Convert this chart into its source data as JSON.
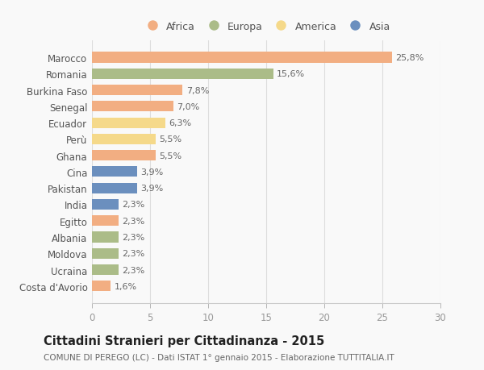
{
  "categories": [
    "Marocco",
    "Romania",
    "Burkina Faso",
    "Senegal",
    "Ecuador",
    "Perù",
    "Ghana",
    "Cina",
    "Pakistan",
    "India",
    "Egitto",
    "Albania",
    "Moldova",
    "Ucraina",
    "Costa d'Avorio"
  ],
  "values": [
    25.8,
    15.6,
    7.8,
    7.0,
    6.3,
    5.5,
    5.5,
    3.9,
    3.9,
    2.3,
    2.3,
    2.3,
    2.3,
    2.3,
    1.6
  ],
  "labels": [
    "25,8%",
    "15,6%",
    "7,8%",
    "7,0%",
    "6,3%",
    "5,5%",
    "5,5%",
    "3,9%",
    "3,9%",
    "2,3%",
    "2,3%",
    "2,3%",
    "2,3%",
    "2,3%",
    "1,6%"
  ],
  "colors": [
    "#F2AE82",
    "#ABBC88",
    "#F2AE82",
    "#F2AE82",
    "#F5D98A",
    "#F5D98A",
    "#F2AE82",
    "#6B8FBE",
    "#6B8FBE",
    "#6B8FBE",
    "#F2AE82",
    "#ABBC88",
    "#ABBC88",
    "#ABBC88",
    "#F2AE82"
  ],
  "legend_items": [
    {
      "label": "Africa",
      "color": "#F2AE82"
    },
    {
      "label": "Europa",
      "color": "#ABBC88"
    },
    {
      "label": "America",
      "color": "#F5D98A"
    },
    {
      "label": "Asia",
      "color": "#6B8FBE"
    }
  ],
  "xlim": [
    0,
    30
  ],
  "xticks": [
    0,
    5,
    10,
    15,
    20,
    25,
    30
  ],
  "title": "Cittadini Stranieri per Cittadinanza - 2015",
  "subtitle": "COMUNE DI PEREGO (LC) - Dati ISTAT 1° gennaio 2015 - Elaborazione TUTTITALIA.IT",
  "background_color": "#f9f9f9",
  "bar_height": 0.65,
  "label_fontsize": 8.0,
  "tick_fontsize": 8.5,
  "legend_fontsize": 9.0,
  "title_fontsize": 10.5,
  "subtitle_fontsize": 7.5
}
